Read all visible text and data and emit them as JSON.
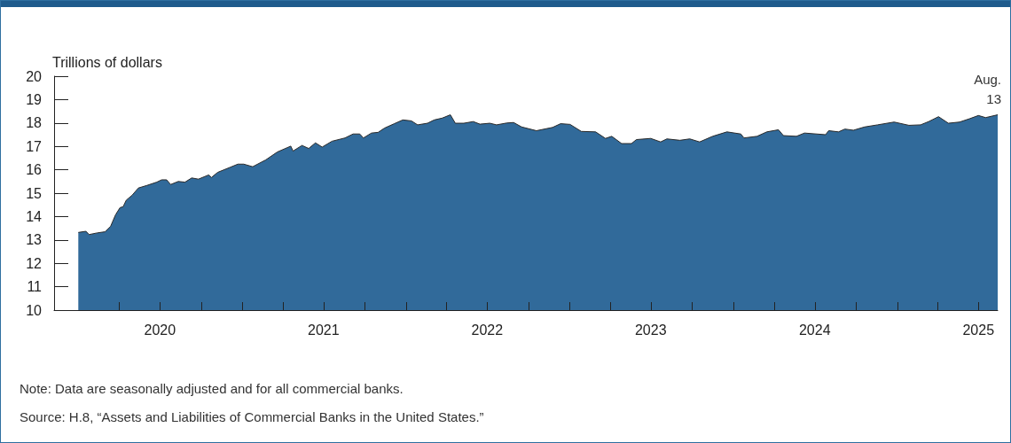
{
  "chart_data": {
    "type": "area",
    "ylabel": "Trillions of dollars",
    "color": "#316a9a",
    "x": [
      "2020-01-01",
      "2020-01-18",
      "2020-01-25",
      "2020-02-12",
      "2020-03-01",
      "2020-03-13",
      "2020-03-24",
      "2020-04-03",
      "2020-04-10",
      "2020-04-17",
      "2020-04-30",
      "2020-05-14",
      "2020-06-02",
      "2020-06-24",
      "2020-07-05",
      "2020-07-16",
      "2020-07-25",
      "2020-08-11",
      "2020-08-26",
      "2020-09-10",
      "2020-09-25",
      "2020-10-18",
      "2020-10-24",
      "2020-11-07",
      "2020-12-04",
      "2020-12-22",
      "2021-01-04",
      "2021-01-24",
      "2021-02-22",
      "2021-03-20",
      "2021-04-19",
      "2021-04-24",
      "2021-05-14",
      "2021-05-29",
      "2021-06-13",
      "2021-06-28",
      "2021-07-20",
      "2021-08-18",
      "2021-09-05",
      "2021-09-20",
      "2021-09-28",
      "2021-10-16",
      "2021-10-31",
      "2021-11-14",
      "2021-12-06",
      "2021-12-25",
      "2022-01-13",
      "2022-01-27",
      "2022-02-18",
      "2022-03-05",
      "2022-03-23",
      "2022-04-10",
      "2022-04-21",
      "2022-05-10",
      "2022-05-31",
      "2022-06-15",
      "2022-07-07",
      "2022-07-22",
      "2022-08-14",
      "2022-08-29",
      "2022-09-16",
      "2022-10-19",
      "2022-11-24",
      "2022-12-12",
      "2023-01-02",
      "2023-01-27",
      "2023-02-28",
      "2023-03-22",
      "2023-04-05",
      "2023-04-27",
      "2023-05-19",
      "2023-05-30",
      "2023-07-01",
      "2023-07-23",
      "2023-08-06",
      "2023-09-04",
      "2023-09-26",
      "2023-10-18",
      "2023-11-16",
      "2023-12-18",
      "2024-01-18",
      "2024-01-25",
      "2024-02-23",
      "2024-03-16",
      "2024-04-11",
      "2024-04-22",
      "2024-05-21",
      "2024-06-08",
      "2024-07-25",
      "2024-08-01",
      "2024-08-23",
      "2024-09-06",
      "2024-09-25",
      "2024-10-20",
      "2024-11-18",
      "2024-12-25",
      "2025-01-27",
      "2025-02-22",
      "2025-03-12",
      "2025-04-03",
      "2025-04-25",
      "2025-05-20",
      "2025-06-11",
      "2025-07-01",
      "2025-07-17",
      "2025-08-13"
    ],
    "values": [
      13.32,
      13.37,
      13.23,
      13.3,
      13.35,
      13.58,
      14.07,
      14.38,
      14.42,
      14.7,
      14.91,
      15.22,
      15.33,
      15.47,
      15.57,
      15.57,
      15.37,
      15.5,
      15.47,
      15.65,
      15.6,
      15.78,
      15.67,
      15.89,
      16.1,
      16.24,
      16.24,
      16.13,
      16.42,
      16.76,
      17.01,
      16.8,
      17.04,
      16.91,
      17.15,
      16.97,
      17.22,
      17.36,
      17.53,
      17.53,
      17.36,
      17.57,
      17.6,
      17.78,
      17.97,
      18.13,
      18.09,
      17.92,
      17.99,
      18.13,
      18.21,
      18.35,
      17.99,
      17.99,
      18.06,
      17.95,
      17.99,
      17.92,
      18.0,
      18.02,
      17.83,
      17.67,
      17.81,
      17.97,
      17.94,
      17.64,
      17.62,
      17.34,
      17.43,
      17.12,
      17.12,
      17.29,
      17.34,
      17.19,
      17.32,
      17.26,
      17.32,
      17.19,
      17.43,
      17.62,
      17.53,
      17.36,
      17.43,
      17.62,
      17.71,
      17.46,
      17.43,
      17.57,
      17.5,
      17.67,
      17.62,
      17.74,
      17.69,
      17.83,
      17.92,
      18.04,
      17.9,
      17.92,
      18.06,
      18.27,
      17.99,
      18.04,
      18.18,
      18.32,
      18.23,
      18.35
    ],
    "xlim": [
      "2019-11-08",
      "2025-08-13"
    ],
    "xticks": [
      {
        "value": "2020-04-01",
        "label": null
      },
      {
        "value": "2020-07-01",
        "label": "2020"
      },
      {
        "value": "2020-10-01",
        "label": null
      },
      {
        "value": "2021-01-01",
        "label": null
      },
      {
        "value": "2021-04-01",
        "label": null
      },
      {
        "value": "2021-07-01",
        "label": "2021"
      },
      {
        "value": "2021-10-01",
        "label": null
      },
      {
        "value": "2022-01-01",
        "label": null
      },
      {
        "value": "2022-04-01",
        "label": null
      },
      {
        "value": "2022-07-01",
        "label": "2022"
      },
      {
        "value": "2022-10-01",
        "label": null
      },
      {
        "value": "2023-01-01",
        "label": null
      },
      {
        "value": "2023-04-01",
        "label": null
      },
      {
        "value": "2023-07-01",
        "label": "2023"
      },
      {
        "value": "2023-10-01",
        "label": null
      },
      {
        "value": "2024-01-01",
        "label": null
      },
      {
        "value": "2024-04-01",
        "label": null
      },
      {
        "value": "2024-07-01",
        "label": "2024"
      },
      {
        "value": "2024-10-01",
        "label": null
      },
      {
        "value": "2025-01-01",
        "label": null
      },
      {
        "value": "2025-04-01",
        "label": null
      },
      {
        "value": "2025-07-01",
        "label": "2025"
      }
    ],
    "ylim": [
      10,
      20
    ],
    "yticks": [
      10,
      11,
      12,
      13,
      14,
      15,
      16,
      17,
      18,
      19,
      20
    ],
    "grid": false,
    "annotations": [
      {
        "text": "Aug. 13",
        "x": "2025-08-13",
        "y": 18.35
      },
      "Note: Data are seasonally adjusted and for all commercial banks.",
      "Source: H.8, “Assets and Liabilities of Commercial Banks in the United States.”"
    ]
  }
}
